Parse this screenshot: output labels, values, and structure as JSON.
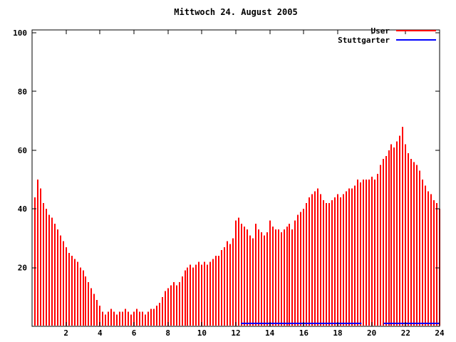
{
  "chart_data": {
    "type": "bar",
    "title": "Mittwoch 24. August 2005",
    "xlabel": "",
    "ylabel": "",
    "xlim": [
      0,
      24
    ],
    "ylim": [
      0,
      101
    ],
    "x_ticks": [
      2,
      4,
      6,
      8,
      10,
      12,
      14,
      16,
      18,
      20,
      22,
      24
    ],
    "y_ticks": [
      20,
      40,
      60,
      80,
      100
    ],
    "grid": false,
    "legend_position": "top-right",
    "series": [
      {
        "name": "User",
        "type": "impulses",
        "color": "#ff0000",
        "x_start": 0.166667,
        "x_step": 0.166667,
        "x_unit": "hours",
        "values": [
          44,
          50,
          47,
          42,
          40,
          38,
          37,
          35,
          33,
          31,
          29,
          27,
          25,
          24,
          23,
          22,
          20,
          19,
          17,
          15,
          13,
          11,
          9,
          7,
          5,
          4,
          5,
          6,
          5,
          4,
          5,
          5,
          6,
          5,
          4,
          5,
          6,
          5,
          5,
          4,
          5,
          6,
          6,
          7,
          8,
          10,
          12,
          13,
          14,
          15,
          14,
          15,
          17,
          19,
          20,
          21,
          20,
          21,
          22,
          21,
          22,
          21,
          22,
          23,
          24,
          24,
          26,
          27,
          29,
          28,
          30,
          36,
          37,
          35,
          34,
          33,
          31,
          30,
          35,
          33,
          32,
          31,
          32,
          36,
          34,
          33,
          33,
          32,
          33,
          34,
          35,
          33,
          36,
          38,
          39,
          40,
          42,
          44,
          45,
          46,
          47,
          45,
          43,
          42,
          42,
          43,
          44,
          45,
          44,
          45,
          46,
          47,
          47,
          48,
          50,
          49,
          50,
          50,
          50,
          51,
          50,
          52,
          55,
          57,
          58,
          60,
          62,
          61,
          63,
          65,
          68,
          62,
          59,
          57,
          56,
          55,
          53,
          50,
          48,
          46,
          45,
          43,
          42,
          40
        ]
      },
      {
        "name": "Stuttgarter",
        "type": "line",
        "color": "#0000ff",
        "segments": [
          {
            "x1": 12.3,
            "x2": 19.4,
            "y": 1
          },
          {
            "x1": 20.7,
            "x2": 24.0,
            "y": 1
          }
        ]
      }
    ]
  },
  "colors": {
    "user": "#ff0000",
    "stuttgarter": "#0000ff",
    "axis": "#000000",
    "background": "#ffffff"
  }
}
